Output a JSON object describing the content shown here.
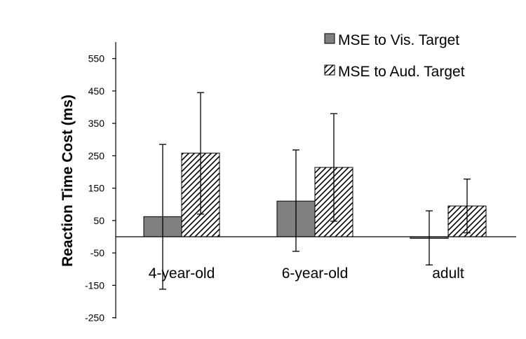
{
  "chart_data": {
    "type": "bar",
    "title": "",
    "xlabel": "",
    "ylabel": "Reaction Time Cost (ms)",
    "ylim": [
      -250,
      630
    ],
    "yticks": [
      -250,
      -150,
      -50,
      50,
      150,
      250,
      350,
      450,
      550
    ],
    "ytick_labels": [
      "-250",
      "-150",
      "-50",
      "50",
      "150",
      "250",
      "350",
      "450",
      "550"
    ],
    "grid": false,
    "legend_position": "top-right",
    "categories": [
      "4-year-old",
      "6-year-old",
      "adult"
    ],
    "series": [
      {
        "name": "MSE to Vis. Target",
        "fill": "solid",
        "color": "#808080",
        "values": [
          62,
          110,
          -5
        ],
        "err_low": [
          -162,
          -45,
          -87
        ],
        "err_high": [
          285,
          268,
          80
        ]
      },
      {
        "name": "MSE to Aud. Target",
        "fill": "diagonal-hatch",
        "color": "#000000",
        "values": [
          258,
          214,
          95
        ],
        "err_low": [
          70,
          48,
          12
        ],
        "err_high": [
          445,
          380,
          178
        ]
      }
    ]
  }
}
